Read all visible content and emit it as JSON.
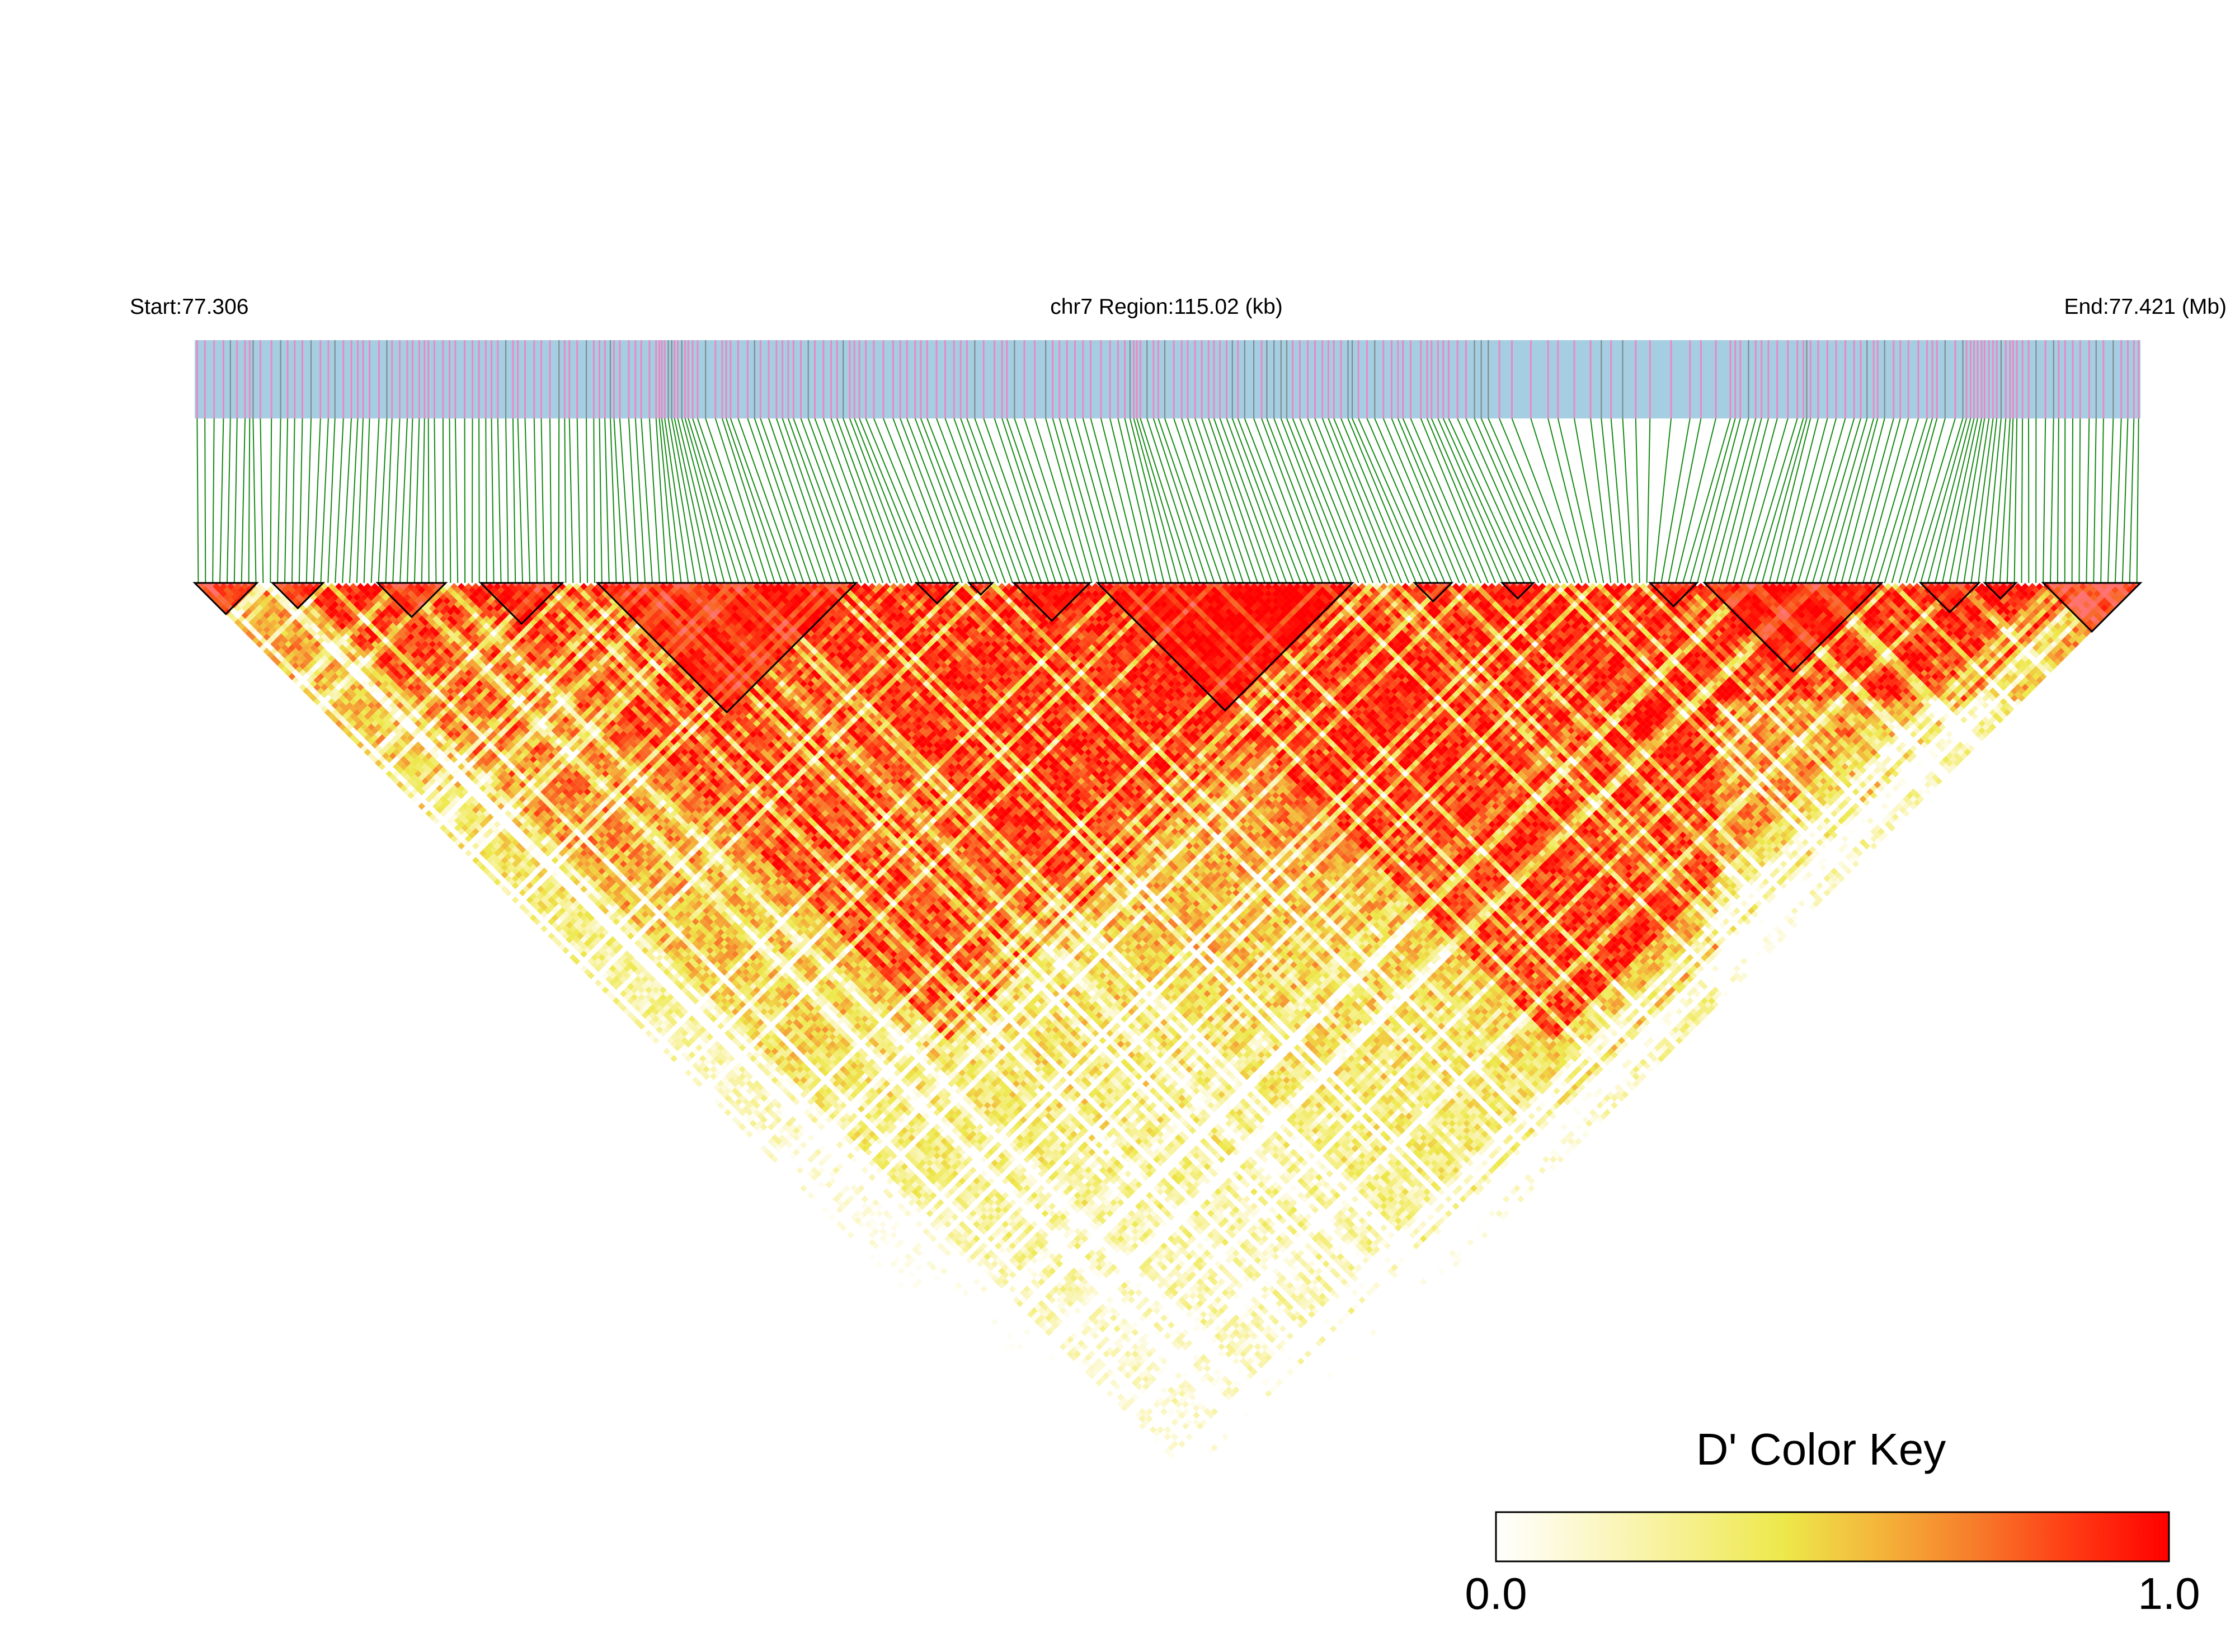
{
  "chart_data": {
    "type": "heatmap",
    "title": "",
    "start_label": "Start:77.306",
    "region_label": "chr7 Region:115.02 (kb)",
    "end_label": "End:77.421 (Mb)",
    "region": {
      "chromosome": "chr7",
      "start_mb": 77.306,
      "end_mb": 77.421,
      "span_kb": 115.02
    },
    "snp_count": 270,
    "seed": 7,
    "colors": {
      "track_background": "#a6cee3",
      "marker_pink": "#e78ac3",
      "marker_gray": "#7f8c8d",
      "connector_green": "#138a13",
      "block_outline": "#000000",
      "low": "#ffffff",
      "mid": "#ede84a",
      "high": "#ff0000"
    },
    "ld_structure": {
      "metric": "D'",
      "hot_zones": [
        {
          "x_from": 0.15,
          "x_to": 0.62,
          "level": 0.9
        },
        {
          "x_from": 0.46,
          "x_to": 0.93,
          "level": 0.92
        },
        {
          "x_from": 0.24,
          "x_to": 0.52,
          "level": 0.86
        },
        {
          "x_from": 0.62,
          "x_to": 0.88,
          "level": 0.94
        }
      ],
      "far_pair_level": 0.4
    },
    "haplotype_blocks": [
      [
        0.0,
        0.032
      ],
      [
        0.04,
        0.066
      ],
      [
        0.094,
        0.129
      ],
      [
        0.147,
        0.189
      ],
      [
        0.207,
        0.34
      ],
      [
        0.371,
        0.392
      ],
      [
        0.398,
        0.41
      ],
      [
        0.421,
        0.46
      ],
      [
        0.464,
        0.595
      ],
      [
        0.627,
        0.646
      ],
      [
        0.672,
        0.688
      ],
      [
        0.748,
        0.772
      ],
      [
        0.776,
        0.867
      ],
      [
        0.887,
        0.917
      ],
      [
        0.92,
        0.936
      ],
      [
        0.95,
        1.0
      ]
    ],
    "color_key": {
      "title": "D' Color Key",
      "min_label": "0.0",
      "max_label": "1.0",
      "min": 0.0,
      "max": 1.0,
      "stops": [
        "#ffffff",
        "#fbf7c8",
        "#f6f08c",
        "#ede84a",
        "#f4b43a",
        "#f77b2a",
        "#ff3a14",
        "#ff0000"
      ]
    }
  }
}
